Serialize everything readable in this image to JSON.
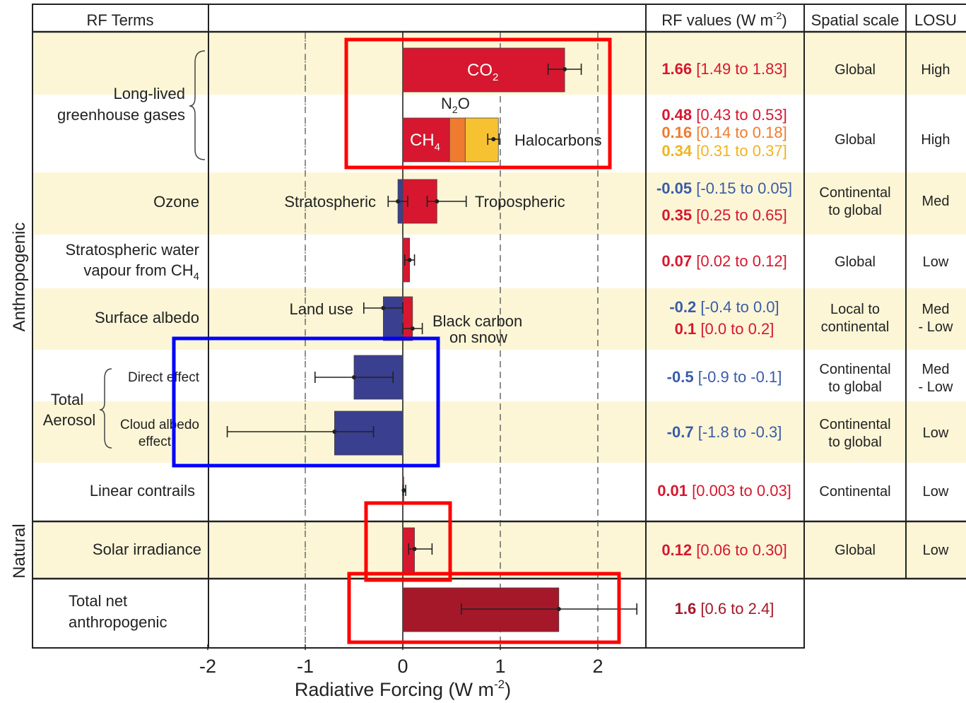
{
  "chart_data": {
    "type": "bar",
    "orientation": "horizontal",
    "xlim": [
      -2,
      2.4
    ],
    "xticks": [
      -2,
      -1,
      0,
      1,
      2
    ],
    "xtick_labels": [
      "-2",
      "-1",
      "0",
      "1",
      "2"
    ],
    "xlabel_main": "Radiative Forcing  (W m",
    "xlabel_sup": "-2",
    "xlabel_end": ")",
    "headers": {
      "terms": "RF Terms",
      "values_main": "RF values (W m",
      "values_sup": "-2",
      "values_end": ")",
      "scale": "Spatial scale",
      "losu": "LOSU"
    },
    "side_labels": {
      "anthropogenic": "Anthropogenic",
      "natural": "Natural"
    },
    "terms": {
      "long_lived": [
        "Long-lived",
        "greenhouse gases"
      ],
      "ozone": "Ozone",
      "strat_water": [
        "Stratospheric water",
        "vapour from CH",
        "4"
      ],
      "surface_albedo": "Surface albedo",
      "total_aerosol": [
        "Total",
        "Aerosol"
      ],
      "direct_effect": "Direct effect",
      "cloud_albedo": [
        "Cloud albedo",
        "effect"
      ],
      "linear_contrails": "Linear contrails",
      "solar": "Solar irradiance",
      "total_net": [
        "Total net",
        "anthropogenic"
      ]
    },
    "bar_labels": {
      "co2": "CO",
      "co2_sub": "2",
      "n2o": "N",
      "n2o_sub": "2",
      "n2o_end": "O",
      "ch4": "CH",
      "ch4_sub": "4",
      "halocarbons": "Halocarbons",
      "stratospheric": "Stratospheric",
      "tropospheric": "Tropospheric",
      "land_use": "Land use",
      "black_carbon": [
        "Black carbon",
        "on snow"
      ]
    },
    "rows": [
      {
        "id": "co2",
        "value": 1.66,
        "low": 1.49,
        "high": 1.83,
        "color": "#d7172f",
        "value_text": "1.66",
        "range_text": "[1.49 to 1.83]",
        "scale": [
          "Global"
        ],
        "losu": [
          "High"
        ]
      },
      {
        "id": "ch4",
        "value": 0.48,
        "low": 0.43,
        "high": 0.53,
        "color": "#d7172f",
        "value_text": "0.48",
        "range_text": "[0.43 to 0.53]"
      },
      {
        "id": "n2o",
        "value": 0.16,
        "low": 0.14,
        "high": 0.18,
        "color": "#ee7b30",
        "value_text": "0.16",
        "range_text": "[0.14 to 0.18]"
      },
      {
        "id": "halocarbons",
        "value": 0.34,
        "low": 0.31,
        "high": 0.37,
        "color": "#f7c232",
        "value_text": "0.34",
        "range_text": "[0.31 to 0.37]",
        "scale": [
          "Global"
        ],
        "losu": [
          "High"
        ]
      },
      {
        "id": "strat_ozone",
        "value": -0.05,
        "low": -0.15,
        "high": 0.05,
        "color": "#3a3f8f",
        "value_text": "-0.05",
        "range_text": "[-0.15 to 0.05]",
        "scale": [
          "Continental",
          "to global"
        ],
        "losu": [
          "Med"
        ]
      },
      {
        "id": "trop_ozone",
        "value": 0.35,
        "low": 0.25,
        "high": 0.65,
        "color": "#d7172f",
        "value_text": "0.35",
        "range_text": "[0.25 to 0.65]"
      },
      {
        "id": "strat_water",
        "value": 0.07,
        "low": 0.02,
        "high": 0.12,
        "color": "#d7172f",
        "value_text": "0.07",
        "range_text": "[0.02 to 0.12]",
        "scale": [
          "Global"
        ],
        "losu": [
          "Low"
        ]
      },
      {
        "id": "land_use",
        "value": -0.2,
        "low": -0.4,
        "high": 0.0,
        "color": "#3a3f8f",
        "value_text": "-0.2",
        "range_text": "[-0.4 to 0.0]",
        "scale": [
          "Local to",
          "continental"
        ],
        "losu": [
          "Med",
          "- Low"
        ]
      },
      {
        "id": "black_carbon",
        "value": 0.1,
        "low": 0.0,
        "high": 0.2,
        "color": "#d7172f",
        "value_text": "0.1",
        "range_text": "[0.0 to 0.2]"
      },
      {
        "id": "direct_aerosol",
        "value": -0.5,
        "low": -0.9,
        "high": -0.1,
        "color": "#3a3f8f",
        "value_text": "-0.5",
        "range_text": "[-0.9 to -0.1]",
        "scale": [
          "Continental",
          "to global"
        ],
        "losu": [
          "Med",
          "- Low"
        ]
      },
      {
        "id": "cloud_albedo",
        "value": -0.7,
        "low": -1.8,
        "high": -0.3,
        "color": "#3a3f8f",
        "value_text": "-0.7",
        "range_text": "[-1.8 to -0.3]",
        "scale": [
          "Continental",
          "to global"
        ],
        "losu": [
          "Low"
        ]
      },
      {
        "id": "contrails",
        "value": 0.01,
        "low": 0.003,
        "high": 0.03,
        "color": "#d7172f",
        "value_text": "0.01",
        "range_text": "[0.003 to 0.03]",
        "scale": [
          "Continental"
        ],
        "losu": [
          "Low"
        ]
      },
      {
        "id": "solar",
        "value": 0.12,
        "low": 0.06,
        "high": 0.3,
        "color": "#d7172f",
        "value_text": "0.12",
        "range_text": "[0.06 to 0.30]",
        "scale": [
          "Global"
        ],
        "losu": [
          "Low"
        ]
      },
      {
        "id": "total_net",
        "value": 1.6,
        "low": 0.6,
        "high": 2.4,
        "color": "#a5182a",
        "value_text": "1.6",
        "range_text": "[0.6 to 2.4]"
      }
    ],
    "value_colors": {
      "positive": "#d7172f",
      "negative": "#3a5ba8",
      "n2o": "#ee7b30",
      "halocarbons": "#f0b323",
      "total": "#a5182a"
    },
    "row_shading": "#fcf6d6",
    "highlight_colors": {
      "red": "#ff0000",
      "blue": "#0000ff"
    }
  }
}
